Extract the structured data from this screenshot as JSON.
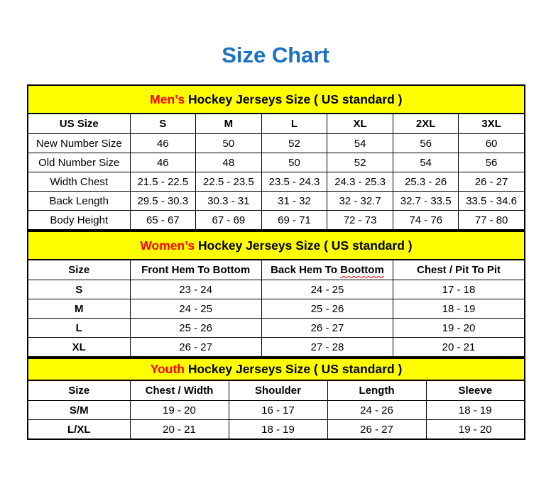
{
  "page": {
    "title": "Size Chart"
  },
  "colors": {
    "title_blue": "#1b70c4",
    "band_yellow": "#ffff00",
    "accent_red": "#ff0000",
    "border_black": "#000000"
  },
  "mens": {
    "header_accent": "Men’s",
    "header_rest": "Hockey Jerseys Size ( US standard )",
    "columns": [
      "US Size",
      "S",
      "M",
      "L",
      "XL",
      "2XL",
      "3XL"
    ],
    "rows": [
      {
        "label": "New Number Size",
        "values": [
          "46",
          "50",
          "52",
          "54",
          "56",
          "60"
        ]
      },
      {
        "label": "Old Number Size",
        "values": [
          "46",
          "48",
          "50",
          "52",
          "54",
          "56"
        ]
      },
      {
        "label": "Width Chest",
        "values": [
          "21.5 - 22.5",
          "22.5 - 23.5",
          "23.5 - 24.3",
          "24.3 - 25.3",
          "25.3 - 26",
          "26 - 27"
        ]
      },
      {
        "label": "Back Length",
        "values": [
          "29.5 - 30.3",
          "30.3 - 31",
          "31 - 32",
          "32 - 32.7",
          "32.7 - 33.5",
          "33.5 - 34.6"
        ]
      },
      {
        "label": "Body Height",
        "values": [
          "65 - 67",
          "67 - 69",
          "69 - 71",
          "72 - 73",
          "74 - 76",
          "77 - 80"
        ]
      }
    ]
  },
  "womens": {
    "header_accent": "Women’s",
    "header_rest": "Hockey Jerseys Size ( US standard )",
    "columns": {
      "size": "Size",
      "front_hem": "Front Hem To Bottom",
      "back_hem_prefix": "Back Hem To",
      "back_hem_misspelled": "Boottom",
      "chest": "Chest / Pit To Pit"
    },
    "rows": [
      {
        "label": "S",
        "values": [
          "23 - 24",
          "24 - 25",
          "17 - 18"
        ]
      },
      {
        "label": "M",
        "values": [
          "24 - 25",
          "25 - 26",
          "18 - 19"
        ]
      },
      {
        "label": "L",
        "values": [
          "25 - 26",
          "26 - 27",
          "19 - 20"
        ]
      },
      {
        "label": "XL",
        "values": [
          "26 - 27",
          "27 - 28",
          "20 - 21"
        ]
      }
    ]
  },
  "youth": {
    "header_accent": "Youth",
    "header_rest": "Hockey Jerseys Size ( US standard )",
    "columns": [
      "Size",
      "Chest / Width",
      "Shoulder",
      "Length",
      "Sleeve"
    ],
    "rows": [
      {
        "label": "S/M",
        "values": [
          "19 - 20",
          "16 - 17",
          "24 - 26",
          "18 - 19"
        ]
      },
      {
        "label": "L/XL",
        "values": [
          "20 - 21",
          "18 - 19",
          "26 - 27",
          "19 - 20"
        ]
      }
    ]
  }
}
